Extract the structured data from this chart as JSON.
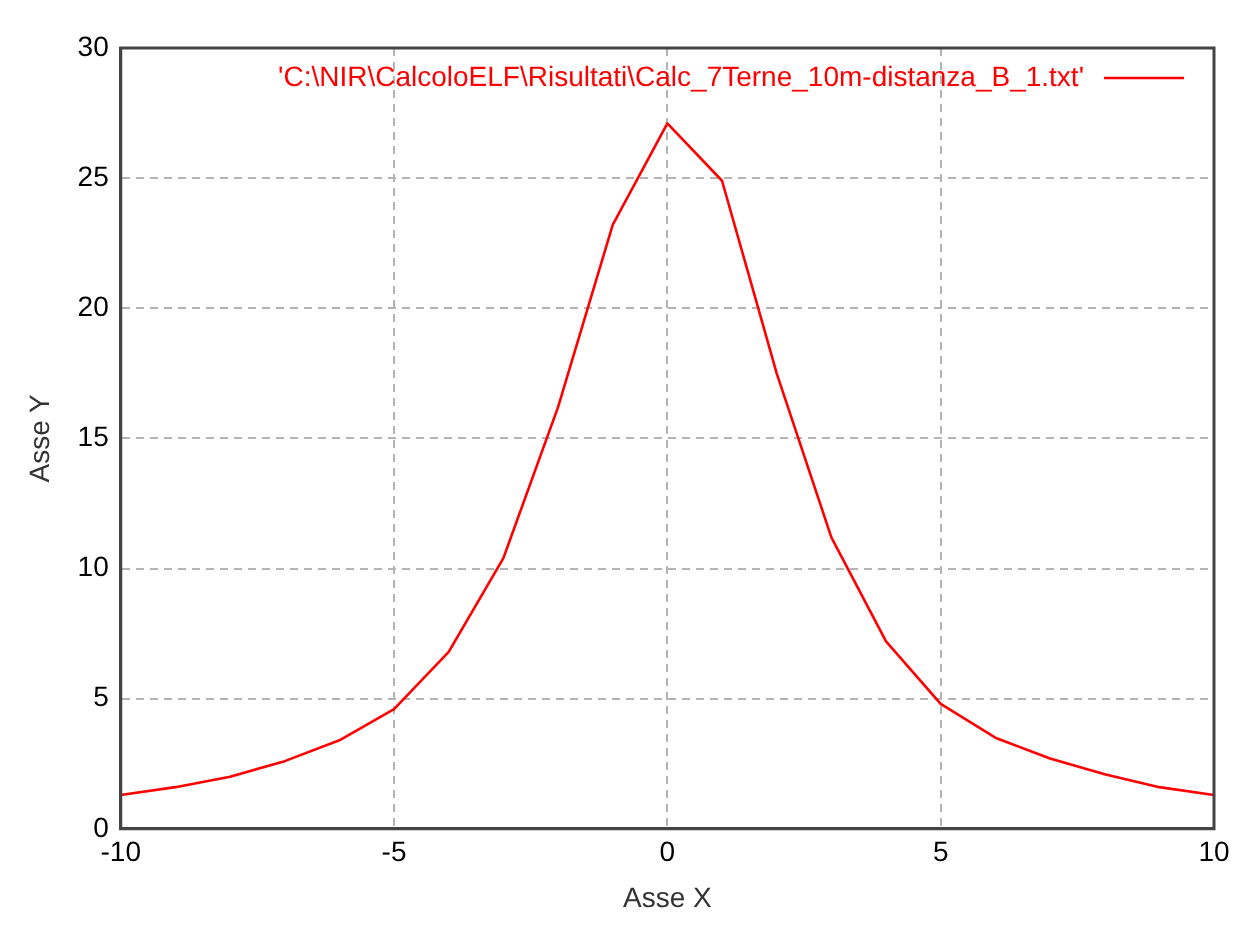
{
  "chart_data": {
    "type": "line",
    "xlabel": "Asse X",
    "ylabel": "Asse Y",
    "x": [
      -10,
      -9,
      -8,
      -7,
      -6,
      -5,
      -4,
      -3,
      -2,
      -1,
      0,
      1,
      2,
      3,
      4,
      5,
      6,
      7,
      8,
      9,
      10
    ],
    "series": [
      {
        "name": "'C:\\NIR\\CalcoloELF\\Risultati\\Calc_7Terne_10m-distanza_B_1.txt'",
        "color": "#ff0000",
        "values": [
          1.3,
          1.6,
          2.0,
          2.6,
          3.4,
          4.6,
          6.8,
          10.4,
          16.2,
          23.2,
          27.1,
          24.9,
          17.5,
          11.2,
          7.2,
          4.8,
          3.5,
          2.7,
          2.1,
          1.6,
          1.3
        ]
      }
    ],
    "xlim": [
      -10,
      10
    ],
    "xticks": [
      -10,
      -5,
      0,
      5,
      10
    ],
    "ylim": [
      0,
      30
    ],
    "yticks": [
      0,
      5,
      10,
      15,
      20,
      25,
      30
    ],
    "grid": true,
    "legend": "top right",
    "marker": "none",
    "line_style": "solid"
  }
}
